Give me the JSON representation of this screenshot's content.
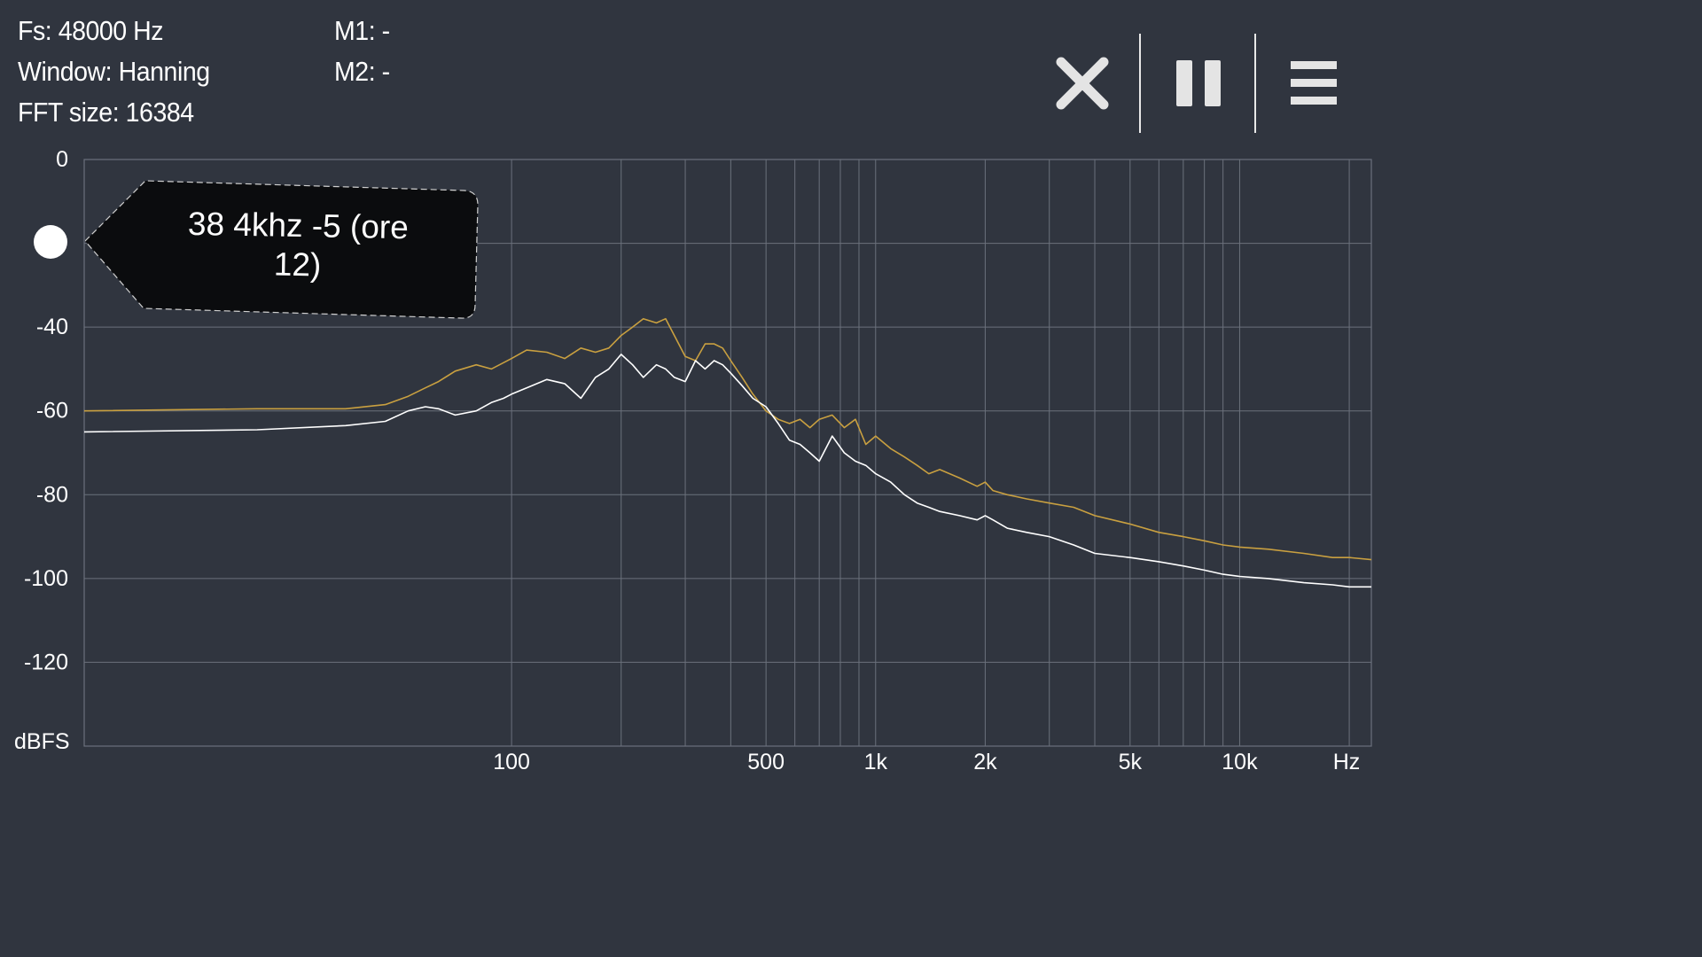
{
  "info": {
    "fs": "Fs: 48000 Hz",
    "window": "Window: Hanning",
    "fft_size": "FFT size: 16384",
    "m1": "M1: -",
    "m2": "M2: -"
  },
  "toolbar": {
    "close_icon": "close-icon",
    "pause_icon": "pause-icon",
    "menu_icon": "menu-icon"
  },
  "tooltip": {
    "text": "38 4khz -5 (ore 12)"
  },
  "colors": {
    "background": "#30353f",
    "grid": "#6b717c",
    "trace_peak": "#c9a040",
    "trace_live": "#ffffff",
    "tooltip_bg": "#0b0c0e"
  },
  "chart_data": {
    "type": "line",
    "xscale": "log",
    "xlabel": "Hz",
    "ylabel": "dBFS",
    "xlim": [
      6.7,
      23000
    ],
    "ylim": [
      -140,
      0
    ],
    "grid": true,
    "y_ticks": [
      {
        "value": 0,
        "label": "0"
      },
      {
        "value": -40,
        "label": "-40"
      },
      {
        "value": -60,
        "label": "-60"
      },
      {
        "value": -80,
        "label": "-80"
      },
      {
        "value": -100,
        "label": "-100"
      },
      {
        "value": -120,
        "label": "-120"
      }
    ],
    "y_gridlines": [
      0,
      -20,
      -40,
      -60,
      -80,
      -100,
      -120,
      -140
    ],
    "x_ticks": [
      {
        "value": 100,
        "label": "100"
      },
      {
        "value": 500,
        "label": "500"
      },
      {
        "value": 1000,
        "label": "1k"
      },
      {
        "value": 2000,
        "label": "2k"
      },
      {
        "value": 5000,
        "label": "5k"
      },
      {
        "value": 10000,
        "label": "10k"
      }
    ],
    "x_gridlines": [
      100,
      200,
      300,
      400,
      500,
      600,
      700,
      800,
      900,
      1000,
      2000,
      3000,
      4000,
      5000,
      6000,
      7000,
      8000,
      9000,
      10000,
      20000
    ],
    "series": [
      {
        "color": "#c9a040",
        "x": [
          6.7,
          20,
          35,
          45,
          52,
          58,
          63,
          70,
          80,
          88,
          95,
          100,
          110,
          125,
          140,
          155,
          170,
          185,
          200,
          215,
          230,
          250,
          265,
          280,
          300,
          320,
          340,
          360,
          380,
          400,
          430,
          460,
          500,
          540,
          580,
          620,
          660,
          700,
          760,
          820,
          880,
          940,
          1000,
          1100,
          1200,
          1300,
          1400,
          1500,
          1700,
          1900,
          2000,
          2100,
          2300,
          2600,
          3000,
          3500,
          4000,
          5000,
          6000,
          7000,
          8000,
          9000,
          10000,
          12000,
          15000,
          18000,
          20000,
          23000
        ],
        "y": [
          -60,
          -59.5,
          -59.5,
          -58.5,
          -56.5,
          -54.5,
          -53,
          -50.5,
          -49,
          -50,
          -48.5,
          -47.5,
          -45.5,
          -46,
          -47.5,
          -45,
          -46,
          -45,
          -42,
          -40,
          -38,
          -39,
          -38,
          -42,
          -47,
          -48,
          -44,
          -44,
          -45,
          -48,
          -52,
          -56,
          -60,
          -62,
          -63,
          -62,
          -64,
          -62,
          -61,
          -64,
          -62,
          -68,
          -66,
          -69,
          -71,
          -73,
          -75,
          -74,
          -76,
          -78,
          -77,
          -79,
          -80,
          -81,
          -82,
          -83,
          -85,
          -87,
          -89,
          -90,
          -91,
          -92,
          -92.5,
          -93,
          -94,
          -95,
          -95,
          -95.5
        ]
      },
      {
        "color": "#ffffff",
        "x": [
          6.7,
          20,
          35,
          45,
          52,
          58,
          63,
          70,
          80,
          88,
          95,
          100,
          110,
          125,
          140,
          155,
          170,
          185,
          200,
          215,
          230,
          250,
          265,
          280,
          300,
          320,
          340,
          360,
          380,
          400,
          430,
          460,
          500,
          540,
          580,
          620,
          660,
          700,
          760,
          820,
          880,
          940,
          1000,
          1100,
          1200,
          1300,
          1400,
          1500,
          1700,
          1900,
          2000,
          2100,
          2300,
          2600,
          3000,
          3500,
          4000,
          5000,
          6000,
          7000,
          8000,
          9000,
          10000,
          12000,
          15000,
          18000,
          20000,
          23000
        ],
        "y": [
          -65,
          -64.5,
          -63.5,
          -62.5,
          -60,
          -59,
          -59.5,
          -61,
          -60,
          -58,
          -57,
          -56,
          -54.5,
          -52.5,
          -53.5,
          -57,
          -52,
          -50,
          -46.5,
          -49,
          -52,
          -49,
          -50,
          -52,
          -53,
          -48,
          -50,
          -48,
          -49,
          -51,
          -54,
          -57,
          -59,
          -63,
          -67,
          -68,
          -70,
          -72,
          -66,
          -70,
          -72,
          -73,
          -75,
          -77,
          -80,
          -82,
          -83,
          -84,
          -85,
          -86,
          -85,
          -86,
          -88,
          -89,
          -90,
          -92,
          -94,
          -95,
          -96,
          -97,
          -98,
          -99,
          -99.5,
          -100,
          -101,
          -101.5,
          -102,
          -102
        ]
      }
    ]
  }
}
